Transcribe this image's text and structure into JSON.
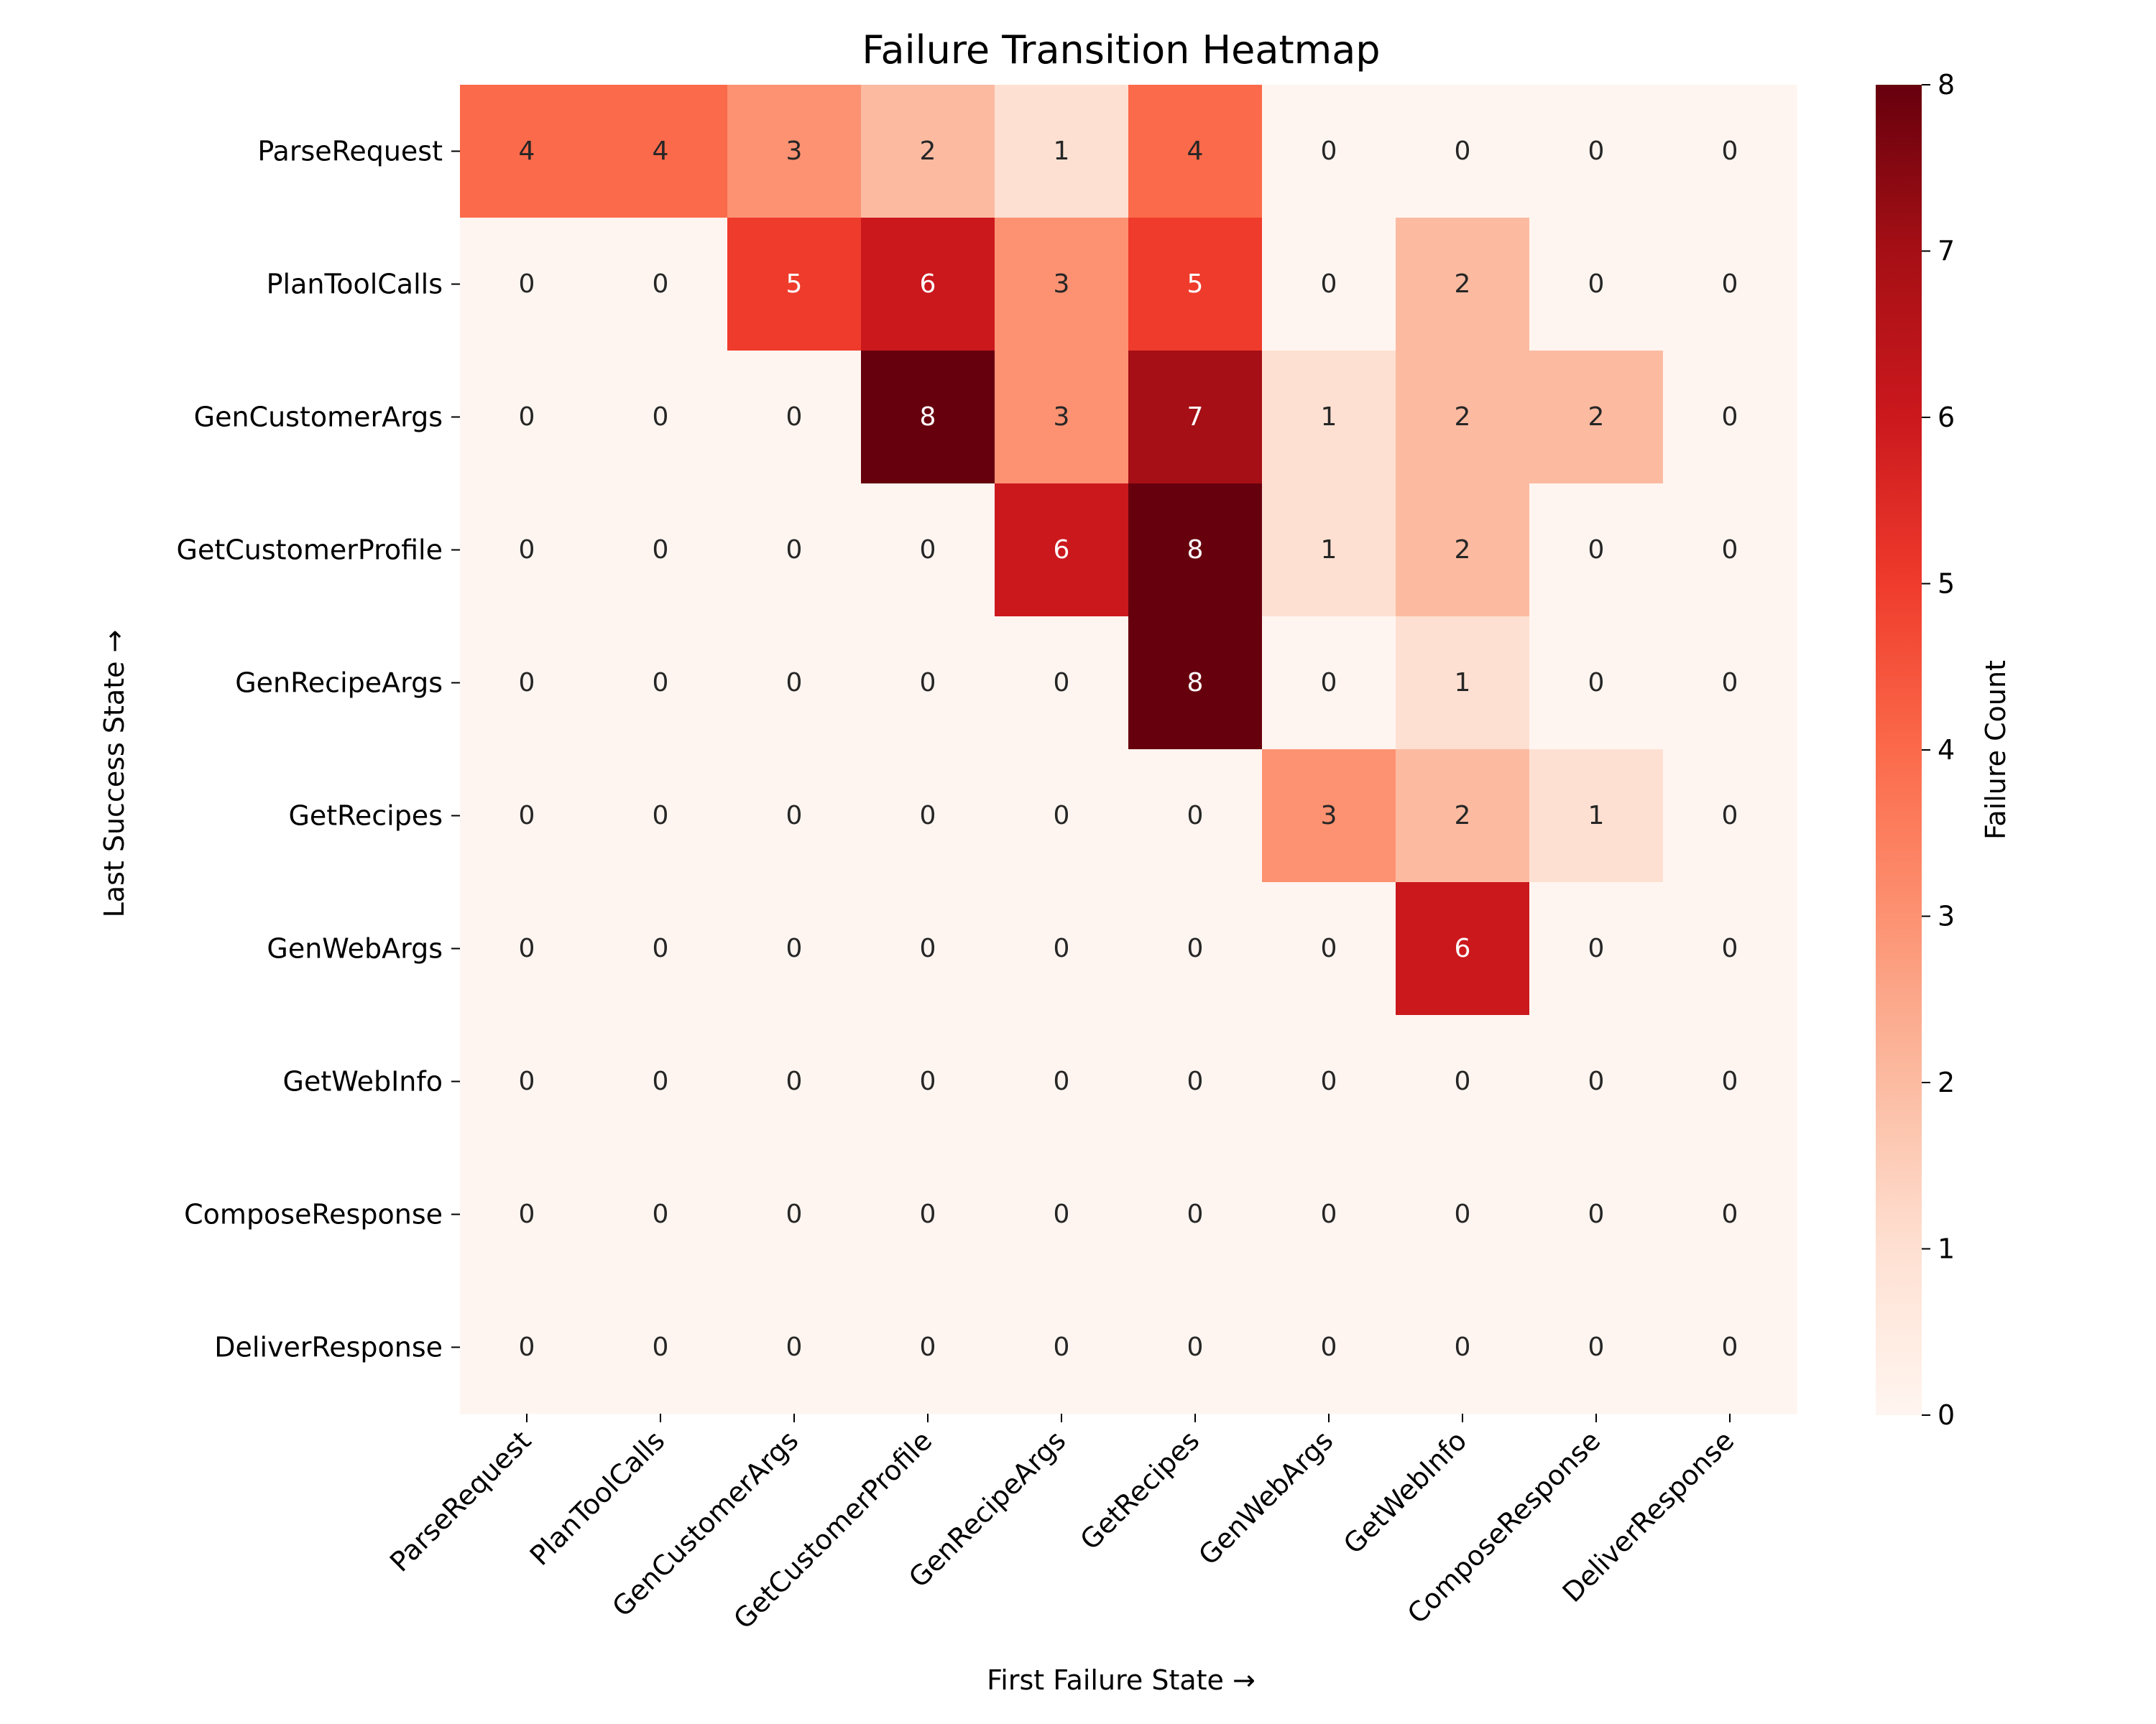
{
  "chart_data": {
    "type": "heatmap",
    "title": "Failure Transition Heatmap",
    "xlabel": "First Failure State →",
    "ylabel": "Last Success State →",
    "x_categories": [
      "ParseRequest",
      "PlanToolCalls",
      "GenCustomerArgs",
      "GetCustomerProfile",
      "GenRecipeArgs",
      "GetRecipes",
      "GenWebArgs",
      "GetWebInfo",
      "ComposeResponse",
      "DeliverResponse"
    ],
    "y_categories": [
      "ParseRequest",
      "PlanToolCalls",
      "GenCustomerArgs",
      "GetCustomerProfile",
      "GenRecipeArgs",
      "GetRecipes",
      "GenWebArgs",
      "GetWebInfo",
      "ComposeResponse",
      "DeliverResponse"
    ],
    "values": [
      [
        4,
        4,
        3,
        2,
        1,
        4,
        0,
        0,
        0,
        0
      ],
      [
        0,
        0,
        5,
        6,
        3,
        5,
        0,
        2,
        0,
        0
      ],
      [
        0,
        0,
        0,
        8,
        3,
        7,
        1,
        2,
        2,
        0
      ],
      [
        0,
        0,
        0,
        0,
        6,
        8,
        1,
        2,
        0,
        0
      ],
      [
        0,
        0,
        0,
        0,
        0,
        8,
        0,
        1,
        0,
        0
      ],
      [
        0,
        0,
        0,
        0,
        0,
        0,
        3,
        2,
        1,
        0
      ],
      [
        0,
        0,
        0,
        0,
        0,
        0,
        0,
        6,
        0,
        0
      ],
      [
        0,
        0,
        0,
        0,
        0,
        0,
        0,
        0,
        0,
        0
      ],
      [
        0,
        0,
        0,
        0,
        0,
        0,
        0,
        0,
        0,
        0
      ],
      [
        0,
        0,
        0,
        0,
        0,
        0,
        0,
        0,
        0,
        0
      ]
    ],
    "colorbar": {
      "label": "Failure Count",
      "range": [
        0,
        8
      ],
      "ticks": [
        0,
        1,
        2,
        3,
        4,
        5,
        6,
        7,
        8
      ],
      "colormap": "Reds"
    },
    "colors": {
      "reds_low": "#fff5f0",
      "reds_high": "#67000d"
    }
  }
}
